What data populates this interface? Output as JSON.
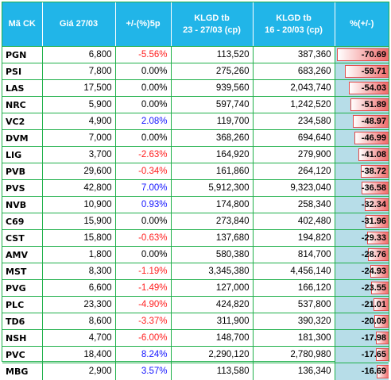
{
  "headers": [
    "Mã CK",
    "Giá 27/03",
    "+/-(%)5p",
    "KLGD tb\n23 - 27/03 (cp)",
    "KLGD tb\n16 - 20/03 (cp)",
    "%(+/-)"
  ],
  "colors": {
    "header_bg": "#21b5e8",
    "border": "#1fb04a",
    "positive": "#1414ff",
    "negative": "#ff1e1e",
    "bar_bg": "#b7dde8",
    "bar_fill": "#f06a6a"
  },
  "rows": [
    {
      "code": "PGN",
      "price": "6,800",
      "chg": "-5.56%",
      "vol_now": "113,520",
      "vol_prev": "387,360",
      "pct": "-70.69",
      "pct_value": -70.69
    },
    {
      "code": "PSI",
      "price": "7,800",
      "chg": "0.00%",
      "vol_now": "275,260",
      "vol_prev": "683,260",
      "pct": "-59.71",
      "pct_value": -59.71
    },
    {
      "code": "LAS",
      "price": "17,500",
      "chg": "0.00%",
      "vol_now": "939,560",
      "vol_prev": "2,043,740",
      "pct": "-54.03",
      "pct_value": -54.03
    },
    {
      "code": "NRC",
      "price": "5,900",
      "chg": "0.00%",
      "vol_now": "597,740",
      "vol_prev": "1,242,520",
      "pct": "-51.89",
      "pct_value": -51.89
    },
    {
      "code": "VC2",
      "price": "4,900",
      "chg": "2.08%",
      "vol_now": "119,700",
      "vol_prev": "234,580",
      "pct": "-48.97",
      "pct_value": -48.97
    },
    {
      "code": "DVM",
      "price": "7,000",
      "chg": "0.00%",
      "vol_now": "368,260",
      "vol_prev": "694,640",
      "pct": "-46.99",
      "pct_value": -46.99
    },
    {
      "code": "LIG",
      "price": "3,700",
      "chg": "-2.63%",
      "vol_now": "164,920",
      "vol_prev": "279,900",
      "pct": "-41.08",
      "pct_value": -41.08
    },
    {
      "code": "PVB",
      "price": "29,600",
      "chg": "-0.34%",
      "vol_now": "161,860",
      "vol_prev": "264,120",
      "pct": "-38.72",
      "pct_value": -38.72
    },
    {
      "code": "PVS",
      "price": "42,800",
      "chg": "7.00%",
      "vol_now": "5,912,300",
      "vol_prev": "9,323,040",
      "pct": "-36.58",
      "pct_value": -36.58
    },
    {
      "code": "NVB",
      "price": "10,900",
      "chg": "0.93%",
      "vol_now": "174,800",
      "vol_prev": "258,340",
      "pct": "-32.34",
      "pct_value": -32.34
    },
    {
      "code": "C69",
      "price": "15,900",
      "chg": "0.00%",
      "vol_now": "273,840",
      "vol_prev": "402,480",
      "pct": "-31.96",
      "pct_value": -31.96
    },
    {
      "code": "CST",
      "price": "15,800",
      "chg": "-0.63%",
      "vol_now": "137,680",
      "vol_prev": "194,820",
      "pct": "-29.33",
      "pct_value": -29.33
    },
    {
      "code": "AMV",
      "price": "1,800",
      "chg": "0.00%",
      "vol_now": "580,380",
      "vol_prev": "814,700",
      "pct": "-28.76",
      "pct_value": -28.76
    },
    {
      "code": "MST",
      "price": "8,300",
      "chg": "-1.19%",
      "vol_now": "3,345,380",
      "vol_prev": "4,456,140",
      "pct": "-24.93",
      "pct_value": -24.93
    },
    {
      "code": "PVG",
      "price": "6,600",
      "chg": "-1.49%",
      "vol_now": "127,000",
      "vol_prev": "166,120",
      "pct": "-23.55",
      "pct_value": -23.55
    },
    {
      "code": "PLC",
      "price": "23,300",
      "chg": "-4.90%",
      "vol_now": "424,820",
      "vol_prev": "537,800",
      "pct": "-21.01",
      "pct_value": -21.01
    },
    {
      "code": "TD6",
      "price": "8,600",
      "chg": "-3.37%",
      "vol_now": "311,900",
      "vol_prev": "390,320",
      "pct": "-20.09",
      "pct_value": -20.09
    },
    {
      "code": "NSH",
      "price": "4,700",
      "chg": "-6.00%",
      "vol_now": "148,700",
      "vol_prev": "181,300",
      "pct": "-17.98",
      "pct_value": -17.98
    },
    {
      "code": "PVC",
      "price": "18,400",
      "chg": "8.24%",
      "vol_now": "2,290,120",
      "vol_prev": "2,780,980",
      "pct": "-17.65",
      "pct_value": -17.65
    },
    {
      "code": "MBG",
      "price": "2,900",
      "chg": "3.57%",
      "vol_now": "113,580",
      "vol_prev": "136,340",
      "pct": "-16.69",
      "pct_value": -16.69
    }
  ]
}
